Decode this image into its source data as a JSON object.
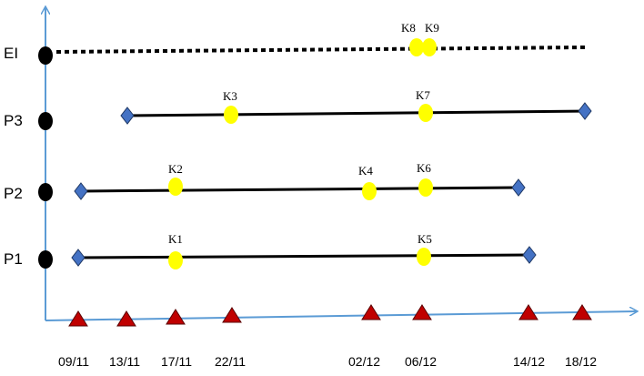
{
  "lanes": [
    {
      "id": "EI",
      "label": "EI"
    },
    {
      "id": "P3",
      "label": "P3"
    },
    {
      "id": "P2",
      "label": "P2"
    },
    {
      "id": "P1",
      "label": "P1"
    }
  ],
  "dates": [
    "09/11",
    "13/11",
    "17/11",
    "22/11",
    "02/12",
    "06/12",
    "14/12",
    "18/12"
  ],
  "milestones": [
    {
      "label": "K1",
      "lane": "P1"
    },
    {
      "label": "K2",
      "lane": "P2"
    },
    {
      "label": "K3",
      "lane": "P3"
    },
    {
      "label": "K4",
      "lane": "P2"
    },
    {
      "label": "K5",
      "lane": "P1"
    },
    {
      "label": "K6",
      "lane": "P2"
    },
    {
      "label": "K7",
      "lane": "P3"
    },
    {
      "label": "K8",
      "lane": "EI"
    },
    {
      "label": "K9",
      "lane": "EI"
    }
  ],
  "colors": {
    "axis": "#5b9bd5",
    "lane_line": "#000000",
    "lane_start_dot": "#000000",
    "diamond_fill": "#4472c4",
    "diamond_stroke": "#1f3864",
    "milestone_fill": "#ffff00",
    "triangle_fill": "#c00000",
    "triangle_stroke": "#5a0000"
  }
}
